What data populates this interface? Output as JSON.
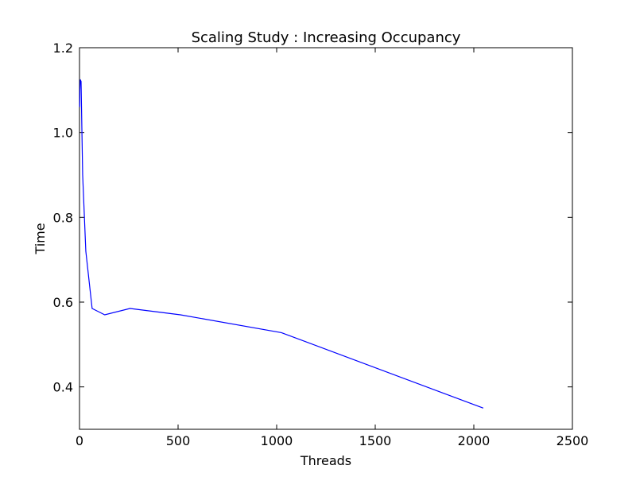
{
  "chart_data": {
    "type": "line",
    "title": "Scaling Study : Increasing Occupancy",
    "xlabel": "Threads",
    "ylabel": "Time",
    "xlim": [
      0,
      2500
    ],
    "ylim": [
      0.3,
      1.2
    ],
    "xticks": [
      0,
      500,
      1000,
      1500,
      2000,
      2500
    ],
    "xtick_labels": [
      "0",
      "500",
      "1000",
      "1500",
      "2000",
      "2500"
    ],
    "yticks": [
      0.4,
      0.6,
      0.8,
      1.0,
      1.2
    ],
    "ytick_labels": [
      "0.4",
      "0.6",
      "0.8",
      "1.0",
      "1.2"
    ],
    "grid": false,
    "series": [
      {
        "color": "#0000ff",
        "x": [
          1,
          2,
          4,
          8,
          16,
          32,
          64,
          128,
          256,
          512,
          1024,
          2048
        ],
        "y": [
          1.06,
          1.1,
          1.125,
          1.12,
          0.9,
          0.72,
          0.585,
          0.57,
          0.585,
          0.57,
          0.528,
          0.35
        ]
      }
    ]
  }
}
